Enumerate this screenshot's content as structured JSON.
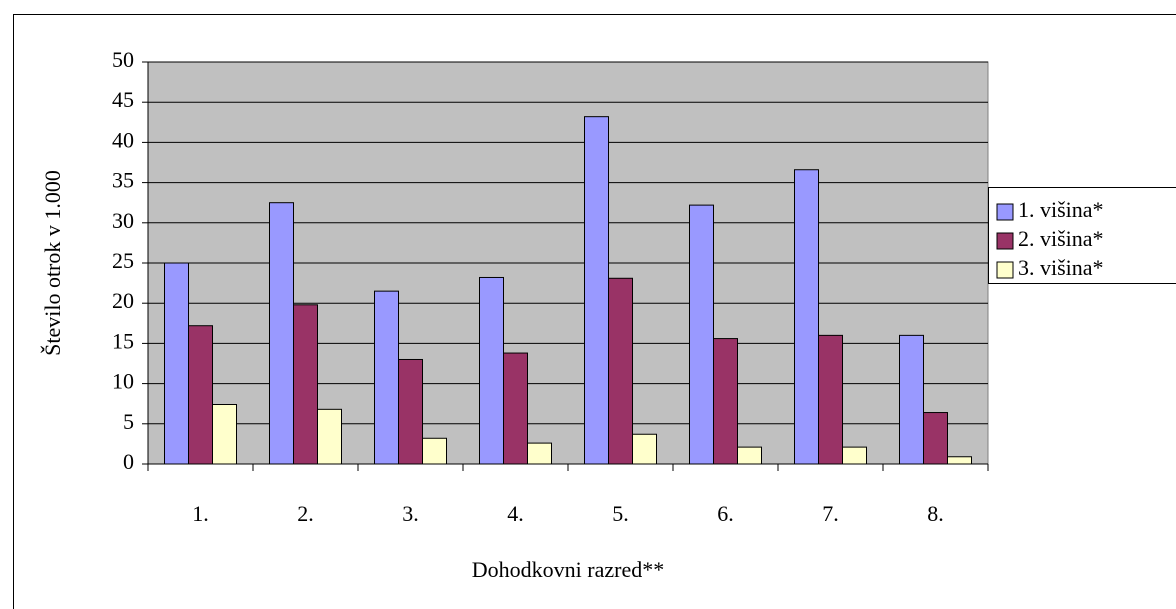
{
  "chart_data": {
    "type": "bar",
    "categories": [
      "1.",
      "2.",
      "3.",
      "4.",
      "5.",
      "6.",
      "7.",
      "8."
    ],
    "series": [
      {
        "name": "1. višina*",
        "color": "#9999ff",
        "values": [
          25,
          32.5,
          21.5,
          23.2,
          43.2,
          32.2,
          36.6,
          16
        ]
      },
      {
        "name": "2. višina*",
        "color": "#993366",
        "values": [
          17.2,
          19.8,
          13,
          13.8,
          23.1,
          15.6,
          16,
          6.4
        ]
      },
      {
        "name": "3. višina*",
        "color": "#ffffcc",
        "values": [
          7.4,
          6.8,
          3.2,
          2.6,
          3.7,
          2.1,
          2.1,
          0.9
        ]
      }
    ],
    "ylabel": "Število otrok v 1.000",
    "xlabel": "Dohodkovni razred**",
    "ylim": [
      0,
      50
    ],
    "yticks": [
      0,
      5,
      10,
      15,
      20,
      25,
      30,
      35,
      40,
      45,
      50
    ],
    "grid": true,
    "legend": "right",
    "plot_background": "#c0c0c0"
  }
}
